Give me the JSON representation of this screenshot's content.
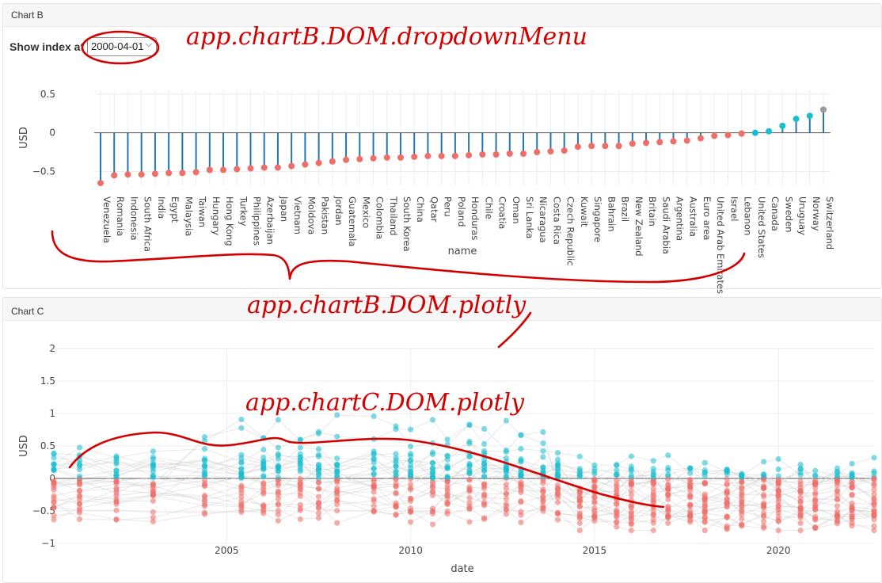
{
  "chartB": {
    "panel_title": "Chart B",
    "control_label": "Show index at",
    "dropdown_value": "2000-04-01",
    "chart_data": {
      "type": "lollipop",
      "ylabel": "USD",
      "xlabel": "name",
      "ylim": [
        -0.68,
        0.55
      ],
      "yticks": [
        0.5,
        0,
        -0.5
      ],
      "ytick_labels": [
        "0.5",
        "0",
        "−0.5"
      ],
      "grid": true,
      "categories": [
        "Venezuela",
        "Romania",
        "Indonesia",
        "South Africa",
        "India",
        "Egypt",
        "Malaysia",
        "Taiwan",
        "Hungary",
        "Hong Kong",
        "Turkey",
        "Philippines",
        "Azerbaijan",
        "Japan",
        "Vietnam",
        "Moldova",
        "Pakistan",
        "Jordan",
        "Guatemala",
        "Mexico",
        "Colombia",
        "Thailand",
        "South Korea",
        "China",
        "Qatar",
        "Peru",
        "Poland",
        "Honduras",
        "Chile",
        "Croatia",
        "Oman",
        "Sri Lanka",
        "Nicaragua",
        "Costa Rica",
        "Czech Republic",
        "Kuwait",
        "Singapore",
        "Bahrain",
        "Brazil",
        "New Zealand",
        "Britain",
        "Saudi Arabia",
        "Argentina",
        "Australia",
        "Euro area",
        "United Arab Emirates",
        "Israel",
        "Lebanon",
        "United States",
        "Canada",
        "Sweden",
        "Uruguay",
        "Norway",
        "Switzerland"
      ],
      "values": [
        -0.65,
        -0.55,
        -0.54,
        -0.54,
        -0.53,
        -0.52,
        -0.52,
        -0.51,
        -0.48,
        -0.48,
        -0.47,
        -0.46,
        -0.45,
        -0.45,
        -0.43,
        -0.41,
        -0.39,
        -0.37,
        -0.35,
        -0.34,
        -0.33,
        -0.32,
        -0.32,
        -0.31,
        -0.3,
        -0.3,
        -0.3,
        -0.29,
        -0.28,
        -0.28,
        -0.27,
        -0.27,
        -0.25,
        -0.24,
        -0.23,
        -0.18,
        -0.17,
        -0.17,
        -0.17,
        -0.14,
        -0.13,
        -0.12,
        -0.11,
        -0.1,
        -0.07,
        -0.04,
        -0.03,
        -0.01,
        0.0,
        0.02,
        0.09,
        0.18,
        0.22,
        0.3
      ],
      "colors": {
        "stem": "#1f77b4",
        "negative": "#ef6e68",
        "positive": "#17becf",
        "reference": "#9a9a9a"
      },
      "reference_category": "United States",
      "highlight_category": "Switzerland"
    }
  },
  "chartC": {
    "panel_title": "Chart C",
    "chart_data": {
      "type": "scatter",
      "ylabel": "USD",
      "xlabel": "date",
      "xlim": [
        2000.3,
        2022.6
      ],
      "ylim": [
        -1.0,
        2.0
      ],
      "xticks": [
        2005,
        2010,
        2015,
        2020
      ],
      "xtick_labels": [
        "2005",
        "2010",
        "2015",
        "2020"
      ],
      "yticks": [
        2,
        1.5,
        1,
        0.5,
        0,
        -0.5,
        -1
      ],
      "ytick_labels": [
        "2",
        "1.5",
        "1",
        "0.5",
        "0",
        "−0.5",
        "−1"
      ],
      "grid": true,
      "colors": {
        "positive": "#17becf",
        "negative": "#ef6e68",
        "lines": "#cccccc"
      },
      "dates": [
        2000.3,
        2001.0,
        2002.0,
        2003.0,
        2004.4,
        2005.4,
        2006.0,
        2006.4,
        2007.0,
        2007.5,
        2008.0,
        2009.0,
        2009.6,
        2010.0,
        2010.6,
        2011.0,
        2011.6,
        2012.0,
        2012.6,
        2013.0,
        2013.6,
        2014.0,
        2014.6,
        2015.0,
        2015.6,
        2016.0,
        2016.6,
        2017.0,
        2017.6,
        2018.0,
        2018.6,
        2019.0,
        2019.6,
        2020.0,
        2020.6,
        2021.0,
        2021.6,
        2022.0,
        2022.6
      ]
    }
  },
  "annotations": {
    "dropdown_note": "app.chartB.DOM.dropdownMenu",
    "chartB_note": "app.chartB.DOM.plotly",
    "chartC_note": "app.chartC.DOM.plotly"
  }
}
